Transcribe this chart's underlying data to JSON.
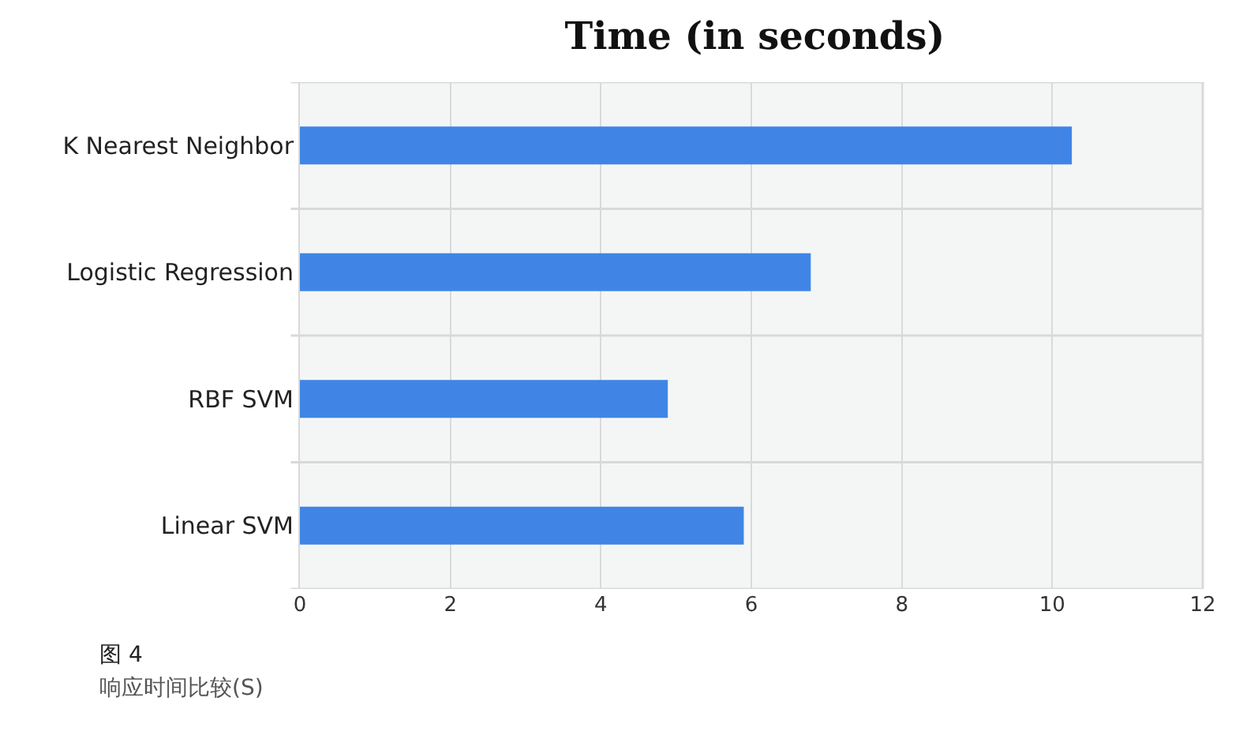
{
  "chart_data": {
    "type": "bar",
    "orientation": "horizontal",
    "title": "Time (in seconds)",
    "categories": [
      "K Nearest Neighbor",
      "Logistic Regression",
      "RBF SVM",
      "Linear SVM"
    ],
    "values": [
      10.26,
      6.79,
      4.89,
      5.9
    ],
    "color": "#4085e6",
    "xlim": [
      0,
      12
    ],
    "xticks": [
      0,
      2,
      4,
      6,
      8,
      10,
      12
    ],
    "grid": true,
    "annotations": [
      "图 4",
      "响应时间比较(S)"
    ]
  }
}
